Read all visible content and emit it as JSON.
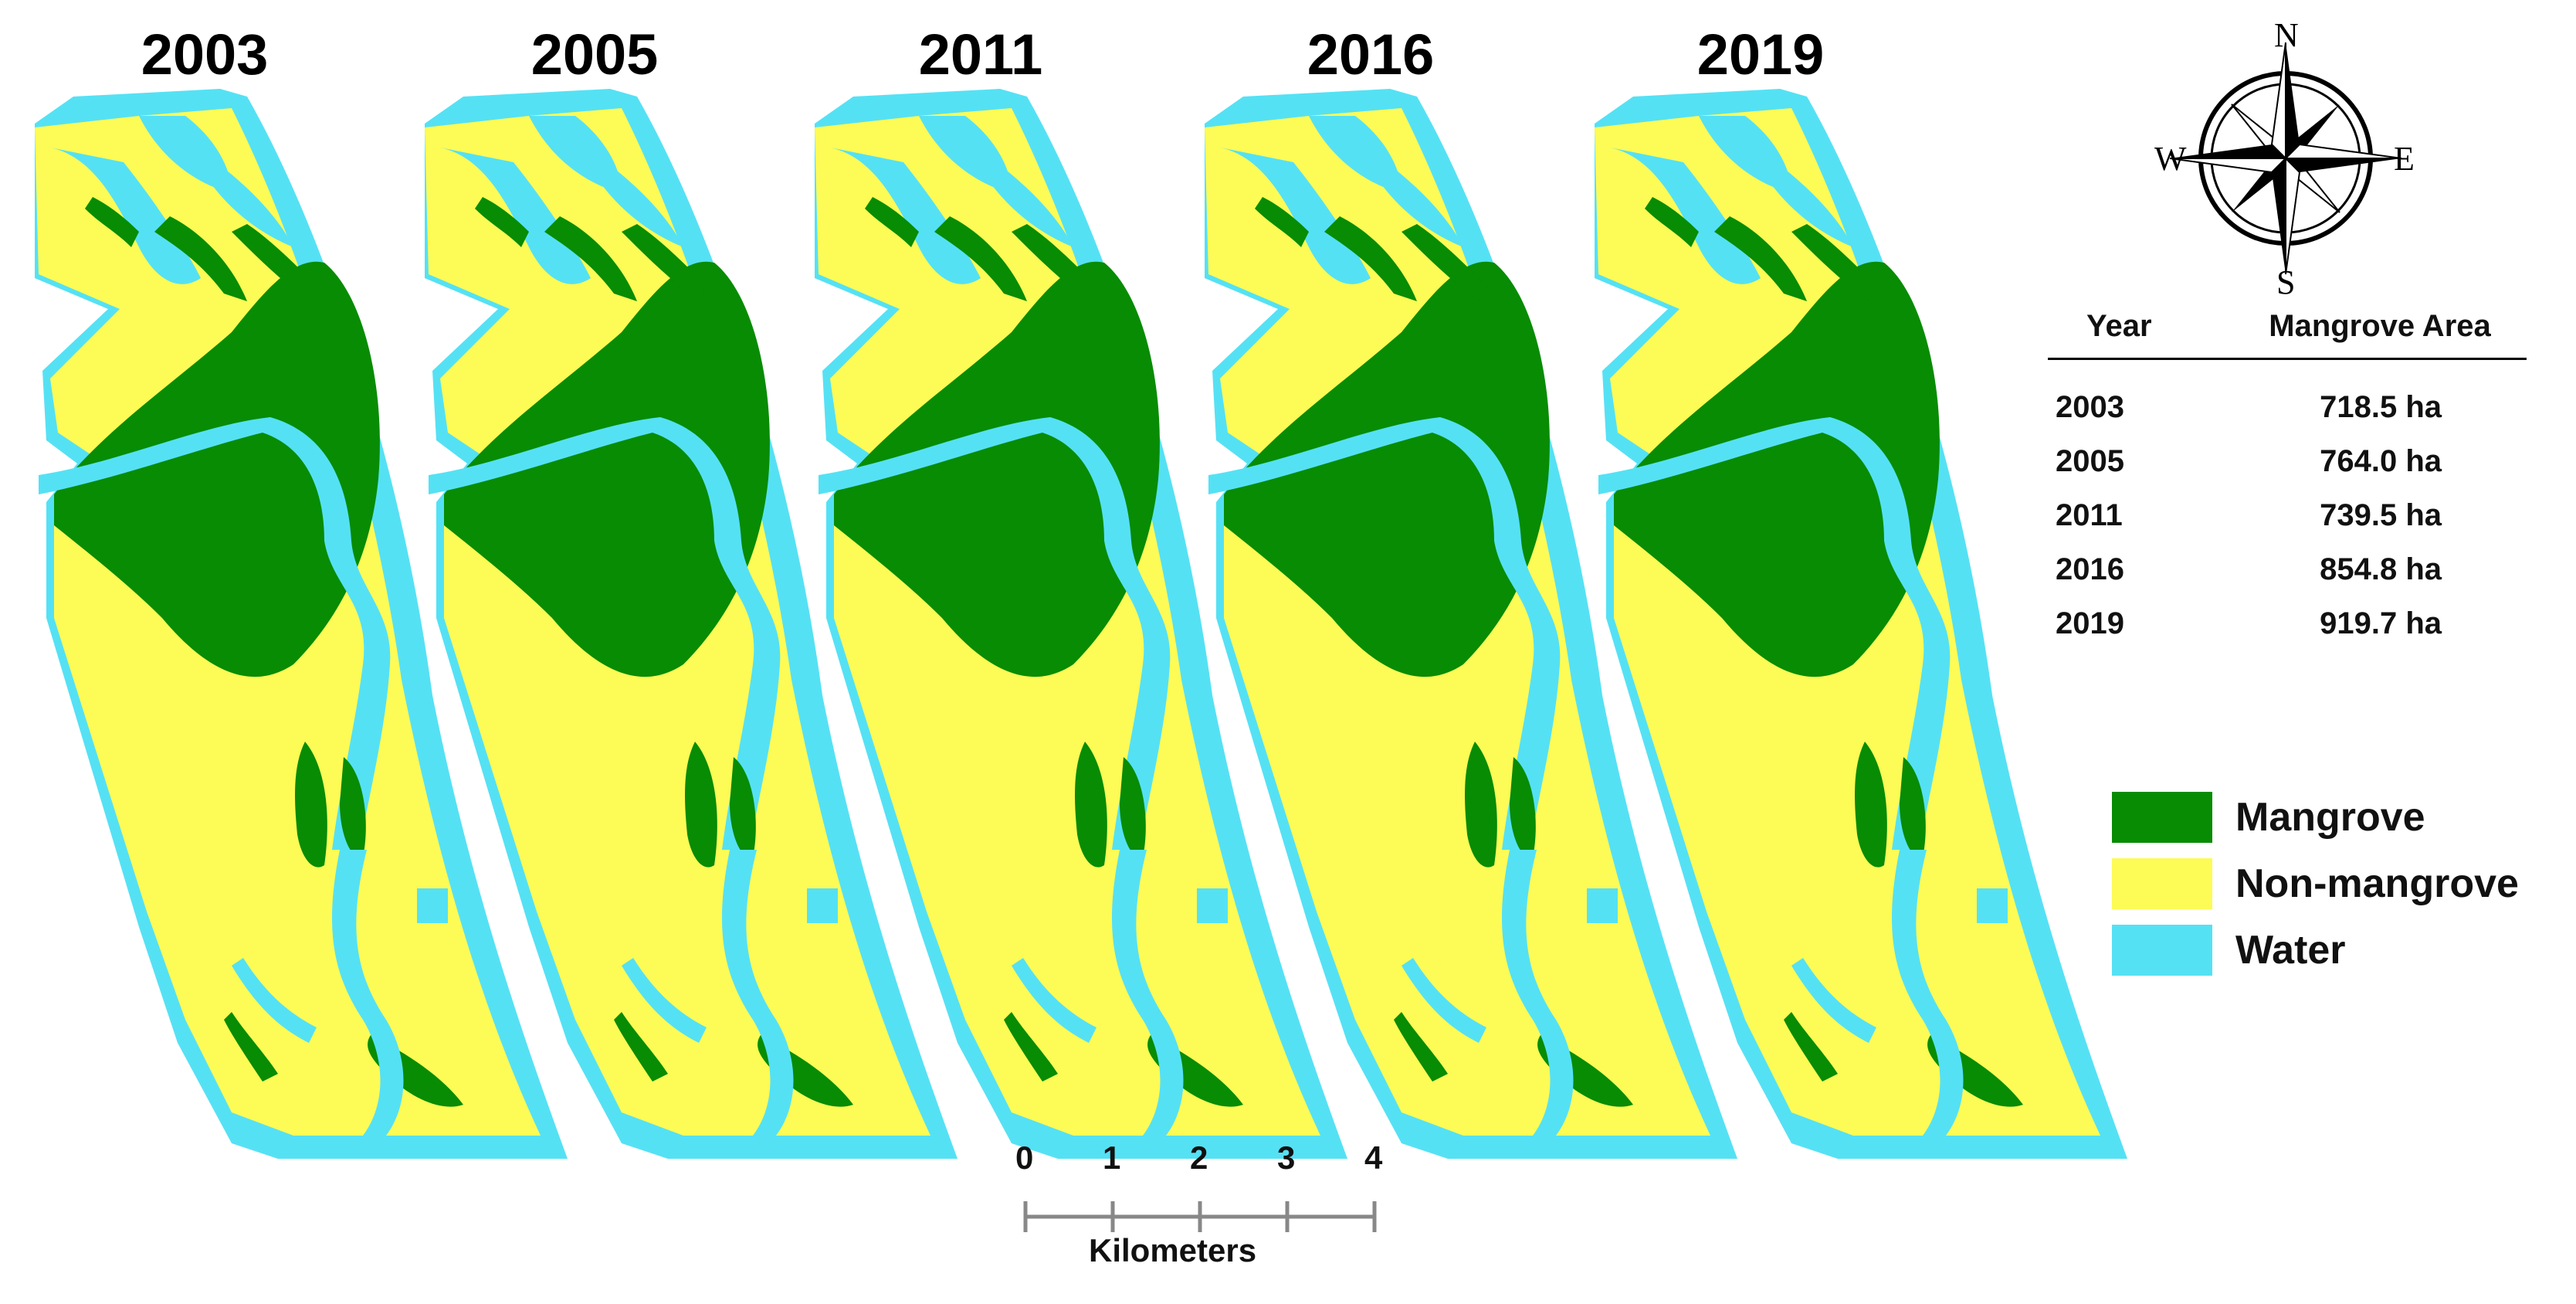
{
  "years": [
    "2003",
    "2005",
    "2011",
    "2016",
    "2019"
  ],
  "compass": {
    "north": "N",
    "south": "S",
    "east": "E",
    "west": "W"
  },
  "table": {
    "header_year": "Year",
    "header_area": "Mangrove Area",
    "rows": [
      {
        "year": "2003",
        "area": "718.5 ha"
      },
      {
        "year": "2005",
        "area": "764.0 ha"
      },
      {
        "year": "2011",
        "area": "739.5 ha"
      },
      {
        "year": "2016",
        "area": "854.8 ha"
      },
      {
        "year": "2019",
        "area": "919.7 ha"
      }
    ]
  },
  "legend": [
    {
      "label": "Mangrove",
      "color": "#078c04"
    },
    {
      "label": "Non-mangrove",
      "color": "#fdfb56"
    },
    {
      "label": "Water",
      "color": "#55e1f4"
    }
  ],
  "scale_bar": {
    "ticks": [
      "0",
      "1",
      "2",
      "3",
      "4"
    ],
    "unit": "Kilometers"
  },
  "colors": {
    "mangrove": "#078c04",
    "non_mangrove": "#fdfb56",
    "water": "#55e1f4"
  }
}
